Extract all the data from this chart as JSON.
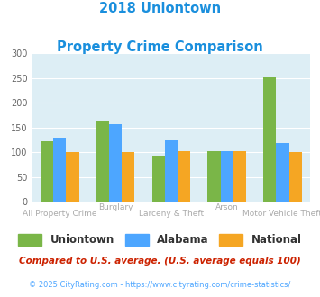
{
  "title_line1": "2018 Uniontown",
  "title_line2": "Property Crime Comparison",
  "title_color": "#1a8fdd",
  "categories": [
    "All Property Crime",
    "Burglary",
    "Larceny & Theft",
    "Arson",
    "Motor Vehicle Theft"
  ],
  "top_labels": [
    "",
    "Burglary",
    "",
    "Arson",
    ""
  ],
  "bottom_labels": [
    "All Property Crime",
    "",
    "Larceny & Theft",
    "",
    "Motor Vehicle Theft"
  ],
  "uniontown": [
    122,
    165,
    93,
    102,
    252
  ],
  "alabama": [
    130,
    157,
    125,
    102,
    118
  ],
  "national": [
    101,
    101,
    102,
    102,
    101
  ],
  "color_uniontown": "#7ab648",
  "color_alabama": "#4da6ff",
  "color_national": "#f5a623",
  "ylim": [
    0,
    300
  ],
  "yticks": [
    0,
    50,
    100,
    150,
    200,
    250,
    300
  ],
  "background_color": "#ddeef5",
  "legend_labels": [
    "Uniontown",
    "Alabama",
    "National"
  ],
  "footnote1": "Compared to U.S. average. (U.S. average equals 100)",
  "footnote2": "© 2025 CityRating.com - https://www.cityrating.com/crime-statistics/",
  "footnote1_color": "#cc2200",
  "footnote2_color": "#4da6ff",
  "label_color": "#aaaaaa"
}
